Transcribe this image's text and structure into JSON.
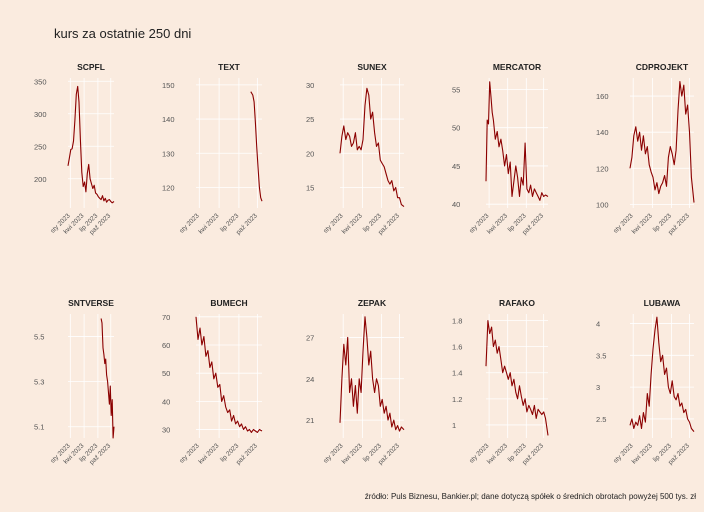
{
  "title": "kurs za ostatnie 250 dni",
  "caption": "źródło: Puls Biznesu, Bankier.pl; dane dotyczą spółek o średnich obrotach powyżej 500 tys. zł",
  "colors": {
    "background": "#faebdf",
    "grid": "#ffffff",
    "line": "#8b0000",
    "text": "#222222",
    "tick": "#555555"
  },
  "x_tick_labels": [
    "sty 2023",
    "kwi 2023",
    "lip 2023",
    "paź 2023"
  ],
  "chart_data": [
    {
      "type": "line",
      "title": "SCPFL",
      "ylim": [
        155,
        355
      ],
      "yticks": [
        200,
        250,
        300,
        350
      ],
      "xlim": [
        0,
        1
      ],
      "x": [
        0.0,
        0.03,
        0.06,
        0.09,
        0.12,
        0.15,
        0.18,
        0.21,
        0.24,
        0.27,
        0.3,
        0.33,
        0.36,
        0.39,
        0.42,
        0.45,
        0.48,
        0.51,
        0.54,
        0.57,
        0.6,
        0.63,
        0.66,
        0.69,
        0.72,
        0.75,
        0.78,
        0.81,
        0.84,
        0.87,
        0.9,
        0.93,
        0.96,
        1.0
      ],
      "values": [
        220,
        232,
        245,
        246,
        258,
        290,
        330,
        342,
        318,
        260,
        210,
        188,
        195,
        180,
        208,
        222,
        200,
        192,
        185,
        190,
        178,
        176,
        172,
        170,
        168,
        174,
        166,
        170,
        164,
        167,
        168,
        165,
        163,
        165
      ]
    },
    {
      "type": "line",
      "title": "TEXT",
      "ylim": [
        114,
        152
      ],
      "yticks": [
        120,
        130,
        140,
        150
      ],
      "xlim": [
        0,
        1
      ],
      "x": [
        0.83,
        0.86,
        0.88,
        0.9,
        0.92,
        0.94,
        0.96,
        0.98,
        1.0
      ],
      "values": [
        148,
        147,
        145,
        139,
        132,
        126,
        120,
        117,
        116
      ]
    },
    {
      "type": "line",
      "title": "SUNEX",
      "ylim": [
        12,
        31
      ],
      "yticks": [
        15,
        20,
        25,
        30
      ],
      "xlim": [
        0,
        1
      ],
      "x": [
        0.0,
        0.03,
        0.06,
        0.09,
        0.12,
        0.15,
        0.18,
        0.21,
        0.24,
        0.27,
        0.3,
        0.33,
        0.36,
        0.39,
        0.42,
        0.45,
        0.48,
        0.51,
        0.54,
        0.57,
        0.6,
        0.63,
        0.66,
        0.69,
        0.72,
        0.75,
        0.78,
        0.81,
        0.84,
        0.87,
        0.9,
        0.93,
        0.96,
        1.0
      ],
      "values": [
        20,
        22.5,
        24,
        22,
        23,
        22.5,
        21,
        21.5,
        23,
        20.5,
        21,
        20.5,
        22,
        27,
        29.5,
        28.5,
        25,
        26,
        23,
        21,
        21.5,
        19,
        18.5,
        18,
        17,
        16,
        15.5,
        16,
        14.5,
        15,
        13.5,
        13.5,
        12.5,
        12.2
      ]
    },
    {
      "type": "line",
      "title": "MERCATOR",
      "ylim": [
        39.5,
        56.5
      ],
      "yticks": [
        40,
        45,
        50,
        55
      ],
      "xlim": [
        0,
        1
      ],
      "x": [
        0.0,
        0.02,
        0.04,
        0.06,
        0.08,
        0.1,
        0.12,
        0.15,
        0.18,
        0.21,
        0.24,
        0.27,
        0.3,
        0.33,
        0.36,
        0.39,
        0.42,
        0.45,
        0.48,
        0.51,
        0.54,
        0.57,
        0.6,
        0.63,
        0.66,
        0.69,
        0.72,
        0.75,
        0.78,
        0.81,
        0.84,
        0.87,
        0.9,
        0.93,
        0.96,
        1.0
      ],
      "values": [
        43,
        51,
        50.5,
        56,
        54,
        52,
        51,
        48.5,
        49.5,
        47.5,
        48.5,
        47,
        45,
        46.5,
        44,
        45.5,
        41,
        43,
        45,
        43.5,
        41,
        43.5,
        42.5,
        48,
        42,
        41.5,
        42.5,
        41,
        42,
        41.5,
        41,
        40.5,
        41.5,
        41,
        41.2,
        41
      ]
    },
    {
      "type": "line",
      "title": "CDPROJEKT",
      "ylim": [
        98,
        170
      ],
      "yticks": [
        100,
        120,
        140,
        160
      ],
      "xlim": [
        0,
        1
      ],
      "x": [
        0.0,
        0.03,
        0.06,
        0.09,
        0.12,
        0.15,
        0.18,
        0.21,
        0.24,
        0.27,
        0.3,
        0.33,
        0.36,
        0.39,
        0.42,
        0.45,
        0.48,
        0.51,
        0.54,
        0.57,
        0.6,
        0.63,
        0.66,
        0.69,
        0.72,
        0.75,
        0.78,
        0.81,
        0.84,
        0.87,
        0.9,
        0.93,
        0.96,
        1.0
      ],
      "values": [
        120,
        126,
        138,
        143,
        135,
        140,
        130,
        138,
        128,
        132,
        122,
        118,
        115,
        108,
        112,
        106,
        110,
        112,
        116,
        110,
        126,
        132,
        128,
        122,
        130,
        152,
        168,
        160,
        166,
        150,
        155,
        140,
        115,
        101
      ]
    },
    {
      "type": "line",
      "title": "SNTVERSE",
      "ylim": [
        5.05,
        5.6
      ],
      "yticks": [
        5.1,
        5.3,
        5.5
      ],
      "xlim": [
        0,
        1
      ],
      "x": [
        0.72,
        0.74,
        0.76,
        0.78,
        0.8,
        0.82,
        0.84,
        0.86,
        0.88,
        0.9,
        0.92,
        0.94,
        0.96,
        0.98,
        1.0
      ],
      "values": [
        5.58,
        5.56,
        5.45,
        5.42,
        5.38,
        5.4,
        5.33,
        5.3,
        5.25,
        5.2,
        5.28,
        5.15,
        5.22,
        5.05,
        5.1
      ]
    },
    {
      "type": "line",
      "title": "BUMECH",
      "ylim": [
        27,
        71
      ],
      "yticks": [
        30,
        40,
        50,
        60,
        70
      ],
      "xlim": [
        0,
        1
      ],
      "x": [
        0.0,
        0.03,
        0.06,
        0.09,
        0.12,
        0.15,
        0.18,
        0.21,
        0.24,
        0.27,
        0.3,
        0.33,
        0.36,
        0.39,
        0.42,
        0.45,
        0.48,
        0.51,
        0.54,
        0.57,
        0.6,
        0.63,
        0.66,
        0.69,
        0.72,
        0.75,
        0.78,
        0.81,
        0.84,
        0.87,
        0.9,
        0.93,
        0.96,
        1.0
      ],
      "values": [
        70,
        62,
        66,
        60,
        63,
        56,
        58,
        52,
        54,
        48,
        50,
        45,
        46,
        40,
        42,
        38,
        36,
        37,
        33,
        35,
        32,
        33,
        31,
        32,
        30,
        31,
        29.5,
        30,
        29,
        30,
        29.5,
        29,
        30,
        29.5
      ]
    },
    {
      "type": "line",
      "title": "ZEPAK",
      "ylim": [
        19.7,
        28.7
      ],
      "yticks": [
        21,
        24,
        27
      ],
      "xlim": [
        0,
        1
      ],
      "x": [
        0.0,
        0.03,
        0.06,
        0.09,
        0.12,
        0.15,
        0.18,
        0.21,
        0.24,
        0.27,
        0.3,
        0.33,
        0.36,
        0.39,
        0.42,
        0.45,
        0.48,
        0.51,
        0.54,
        0.57,
        0.6,
        0.63,
        0.66,
        0.69,
        0.72,
        0.75,
        0.78,
        0.81,
        0.84,
        0.87,
        0.9,
        0.93,
        0.96,
        1.0
      ],
      "values": [
        20.8,
        24,
        26.5,
        25,
        27,
        23,
        24,
        22,
        23.5,
        21.5,
        24,
        23,
        26,
        28.5,
        27,
        25,
        26,
        24,
        23,
        24,
        23.5,
        22,
        22.5,
        21.5,
        22,
        21,
        21.5,
        20.5,
        21,
        20.3,
        20.6,
        20.2,
        20.5,
        20.3
      ]
    },
    {
      "type": "line",
      "title": "RAFAKO",
      "ylim": [
        0.9,
        1.85
      ],
      "yticks": [
        1.0,
        1.2,
        1.4,
        1.6,
        1.8
      ],
      "xlim": [
        0,
        1
      ],
      "x": [
        0.0,
        0.03,
        0.06,
        0.09,
        0.12,
        0.15,
        0.18,
        0.21,
        0.24,
        0.27,
        0.3,
        0.33,
        0.36,
        0.39,
        0.42,
        0.45,
        0.48,
        0.51,
        0.54,
        0.57,
        0.6,
        0.63,
        0.66,
        0.69,
        0.72,
        0.75,
        0.78,
        0.81,
        0.84,
        0.87,
        0.9,
        0.93,
        0.96,
        1.0
      ],
      "values": [
        1.45,
        1.8,
        1.7,
        1.75,
        1.6,
        1.65,
        1.55,
        1.6,
        1.5,
        1.4,
        1.45,
        1.4,
        1.35,
        1.4,
        1.3,
        1.35,
        1.25,
        1.2,
        1.3,
        1.22,
        1.15,
        1.2,
        1.1,
        1.15,
        1.12,
        1.08,
        1.15,
        1.05,
        1.12,
        1.1,
        1.08,
        1.1,
        1.05,
        0.92
      ]
    },
    {
      "type": "line",
      "title": "LUBAWA",
      "ylim": [
        2.2,
        4.15
      ],
      "yticks": [
        2.5,
        3.0,
        3.5,
        4.0
      ],
      "xlim": [
        0,
        1
      ],
      "x": [
        0.0,
        0.03,
        0.06,
        0.09,
        0.12,
        0.15,
        0.18,
        0.21,
        0.24,
        0.27,
        0.3,
        0.33,
        0.36,
        0.39,
        0.42,
        0.45,
        0.48,
        0.51,
        0.54,
        0.57,
        0.6,
        0.63,
        0.66,
        0.69,
        0.72,
        0.75,
        0.78,
        0.81,
        0.84,
        0.87,
        0.9,
        0.93,
        0.96,
        1.0
      ],
      "values": [
        2.4,
        2.5,
        2.35,
        2.45,
        2.4,
        2.55,
        2.35,
        2.6,
        2.45,
        2.9,
        2.7,
        3.2,
        3.6,
        3.9,
        4.1,
        3.7,
        3.4,
        3.5,
        3.2,
        3.3,
        3.0,
        2.9,
        3.1,
        2.85,
        2.8,
        2.9,
        2.7,
        2.75,
        2.6,
        2.65,
        2.5,
        2.45,
        2.35,
        2.3
      ]
    }
  ]
}
